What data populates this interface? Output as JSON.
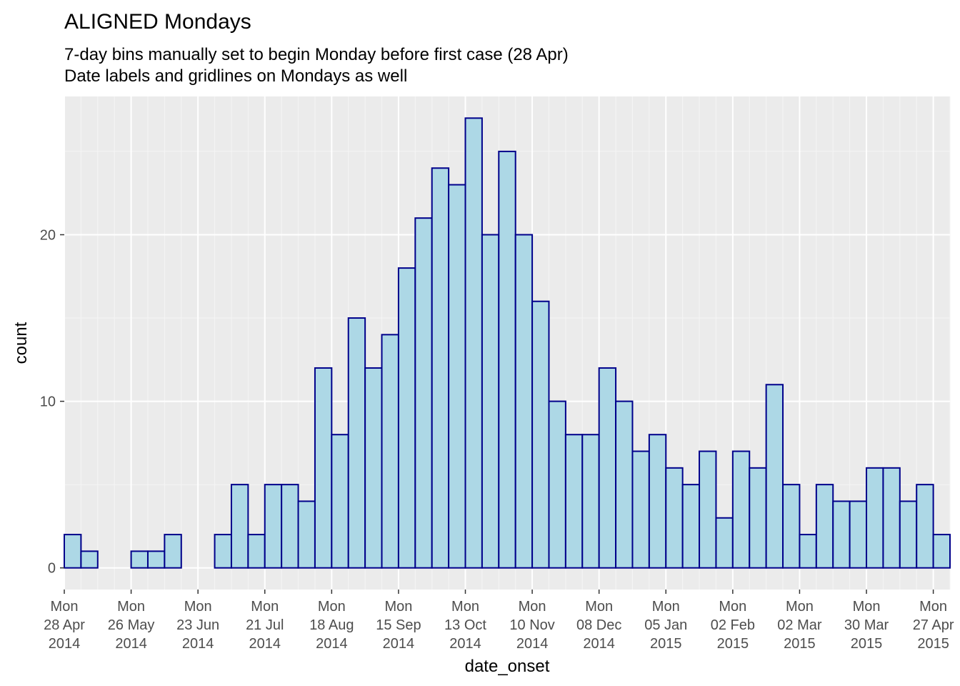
{
  "chart_data": {
    "type": "bar",
    "title": "ALIGNED Mondays",
    "subtitle_lines": [
      "7-day bins manually set to begin Monday before first case (28 Apr)",
      "Date labels and gridlines on Mondays as well"
    ],
    "xlabel": "date_onset",
    "ylabel": "count",
    "ylim": [
      -1.3,
      28.3
    ],
    "y_ticks": [
      0,
      10,
      20
    ],
    "bin_width_days": 7,
    "x_ticks": [
      {
        "date": "2014-04-28",
        "label": [
          "Mon",
          "28 Apr",
          "2014"
        ]
      },
      {
        "date": "2014-05-26",
        "label": [
          "Mon",
          "26 May",
          "2014"
        ]
      },
      {
        "date": "2014-06-23",
        "label": [
          "Mon",
          "23 Jun",
          "2014"
        ]
      },
      {
        "date": "2014-07-21",
        "label": [
          "Mon",
          "21 Jul",
          "2014"
        ]
      },
      {
        "date": "2014-08-18",
        "label": [
          "Mon",
          "18 Aug",
          "2014"
        ]
      },
      {
        "date": "2014-09-15",
        "label": [
          "Mon",
          "15 Sep",
          "2014"
        ]
      },
      {
        "date": "2014-10-13",
        "label": [
          "Mon",
          "13 Oct",
          "2014"
        ]
      },
      {
        "date": "2014-11-10",
        "label": [
          "Mon",
          "10 Nov",
          "2014"
        ]
      },
      {
        "date": "2014-12-08",
        "label": [
          "Mon",
          "08 Dec",
          "2014"
        ]
      },
      {
        "date": "2015-01-05",
        "label": [
          "Mon",
          "05 Jan",
          "2015"
        ]
      },
      {
        "date": "2015-02-02",
        "label": [
          "Mon",
          "02 Feb",
          "2015"
        ]
      },
      {
        "date": "2015-03-02",
        "label": [
          "Mon",
          "02 Mar",
          "2015"
        ]
      },
      {
        "date": "2015-03-30",
        "label": [
          "Mon",
          "30 Mar",
          "2015"
        ]
      },
      {
        "date": "2015-04-27",
        "label": [
          "Mon",
          "27 Apr",
          "2015"
        ]
      }
    ],
    "bins": [
      {
        "start": "2014-04-28",
        "count": 2
      },
      {
        "start": "2014-05-05",
        "count": 1
      },
      {
        "start": "2014-05-12",
        "count": 0
      },
      {
        "start": "2014-05-19",
        "count": 0
      },
      {
        "start": "2014-05-26",
        "count": 1
      },
      {
        "start": "2014-06-02",
        "count": 1
      },
      {
        "start": "2014-06-09",
        "count": 2
      },
      {
        "start": "2014-06-16",
        "count": 0
      },
      {
        "start": "2014-06-23",
        "count": 0
      },
      {
        "start": "2014-06-30",
        "count": 2
      },
      {
        "start": "2014-07-07",
        "count": 5
      },
      {
        "start": "2014-07-14",
        "count": 2
      },
      {
        "start": "2014-07-21",
        "count": 5
      },
      {
        "start": "2014-07-28",
        "count": 5
      },
      {
        "start": "2014-08-04",
        "count": 4
      },
      {
        "start": "2014-08-11",
        "count": 12
      },
      {
        "start": "2014-08-18",
        "count": 8
      },
      {
        "start": "2014-08-25",
        "count": 15
      },
      {
        "start": "2014-09-01",
        "count": 12
      },
      {
        "start": "2014-09-08",
        "count": 14
      },
      {
        "start": "2014-09-15",
        "count": 18
      },
      {
        "start": "2014-09-22",
        "count": 21
      },
      {
        "start": "2014-09-29",
        "count": 24
      },
      {
        "start": "2014-10-06",
        "count": 23
      },
      {
        "start": "2014-10-13",
        "count": 27
      },
      {
        "start": "2014-10-20",
        "count": 20
      },
      {
        "start": "2014-10-27",
        "count": 25
      },
      {
        "start": "2014-11-03",
        "count": 20
      },
      {
        "start": "2014-11-10",
        "count": 16
      },
      {
        "start": "2014-11-17",
        "count": 10
      },
      {
        "start": "2014-11-24",
        "count": 8
      },
      {
        "start": "2014-12-01",
        "count": 8
      },
      {
        "start": "2014-12-08",
        "count": 12
      },
      {
        "start": "2014-12-15",
        "count": 10
      },
      {
        "start": "2014-12-22",
        "count": 7
      },
      {
        "start": "2014-12-29",
        "count": 8
      },
      {
        "start": "2015-01-05",
        "count": 6
      },
      {
        "start": "2015-01-12",
        "count": 5
      },
      {
        "start": "2015-01-19",
        "count": 7
      },
      {
        "start": "2015-01-26",
        "count": 3
      },
      {
        "start": "2015-02-02",
        "count": 7
      },
      {
        "start": "2015-02-09",
        "count": 6
      },
      {
        "start": "2015-02-16",
        "count": 11
      },
      {
        "start": "2015-02-23",
        "count": 5
      },
      {
        "start": "2015-03-02",
        "count": 2
      },
      {
        "start": "2015-03-09",
        "count": 5
      },
      {
        "start": "2015-03-16",
        "count": 4
      },
      {
        "start": "2015-03-23",
        "count": 4
      },
      {
        "start": "2015-03-30",
        "count": 6
      },
      {
        "start": "2015-04-06",
        "count": 6
      },
      {
        "start": "2015-04-13",
        "count": 4
      },
      {
        "start": "2015-04-20",
        "count": 5
      },
      {
        "start": "2015-04-27",
        "count": 2
      }
    ],
    "x_range": [
      "2014-04-28",
      "2015-05-04"
    ],
    "grid": true,
    "legend": "none",
    "colors": {
      "panel_background": "#ebebeb",
      "grid_major": "#ffffff",
      "grid_minor": "#f5f5f5",
      "bar_fill": "#add8e6",
      "bar_outline": "#00008b",
      "tick": "#333333",
      "tick_label": "#4d4d4d"
    }
  }
}
